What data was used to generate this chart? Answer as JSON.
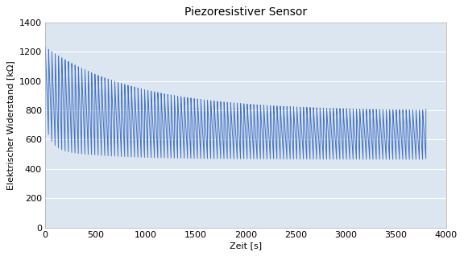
{
  "title": "Piezoresistiver Sensor",
  "xlabel": "Zeit [s]",
  "ylabel": "Elektrischer Widerstand [kΩ]",
  "xlim": [
    0,
    4000
  ],
  "ylim": [
    0,
    1400
  ],
  "xticks": [
    0,
    500,
    1000,
    1500,
    2000,
    2500,
    3000,
    3500,
    4000
  ],
  "yticks": [
    0,
    200,
    400,
    600,
    800,
    1000,
    1200,
    1400
  ],
  "total_time": 3800,
  "n_cycles": 115,
  "initial_max": 1230,
  "final_max": 800,
  "initial_min_early": 700,
  "initial_min": 525,
  "final_min": 465,
  "decay_tau_max": 900,
  "decay_tau_min": 500,
  "line_color": "#4472C4",
  "line_width": 0.7,
  "bg_color": "#ffffff",
  "plot_bg_color": "#dce6f1",
  "grid_color": "#ffffff",
  "title_fontsize": 10,
  "label_fontsize": 8,
  "tick_fontsize": 8
}
